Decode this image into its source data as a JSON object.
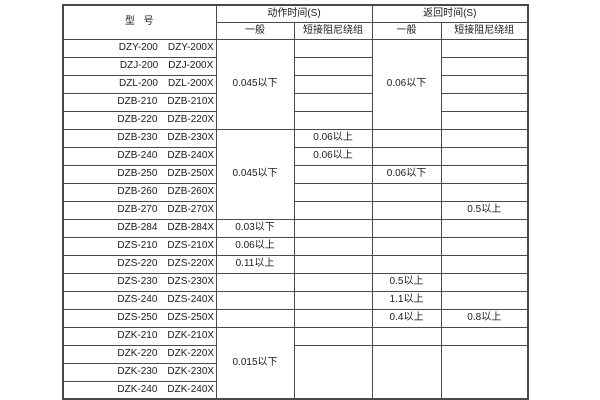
{
  "colors": {
    "background": "#ffffff",
    "border": "#4a4a4a",
    "text": "#1a1a1a"
  },
  "table": {
    "header": {
      "model": "型  号",
      "action_time": "动作时间(S)",
      "return_time": "返回时间(S)",
      "general": "一般",
      "short_damping": "短接阻尼绕组"
    },
    "rows": [
      {
        "m1": "DZY-200",
        "m2": "DZY-200X"
      },
      {
        "m1": "DZJ-200",
        "m2": "DZJ-200X"
      },
      {
        "m1": "DZL-200",
        "m2": "DZL-200X"
      },
      {
        "m1": "DZB-210",
        "m2": "DZB-210X"
      },
      {
        "m1": "DZB-220",
        "m2": "DZB-220X"
      },
      {
        "m1": "DZB-230",
        "m2": "DZB-230X"
      },
      {
        "m1": "DZB-240",
        "m2": "DZB-240X"
      },
      {
        "m1": "DZB-250",
        "m2": "DZB-250X"
      },
      {
        "m1": "DZB-260",
        "m2": "DZB-260X"
      },
      {
        "m1": "DZB-270",
        "m2": "DZB-270X"
      },
      {
        "m1": "DZB-284",
        "m2": "DZB-284X"
      },
      {
        "m1": "DZS-210",
        "m2": "DZS-210X"
      },
      {
        "m1": "DZS-220",
        "m2": "DZS-220X"
      },
      {
        "m1": "DZS-230",
        "m2": "DZS-230X"
      },
      {
        "m1": "DZS-240",
        "m2": "DZS-240X"
      },
      {
        "m1": "DZS-250",
        "m2": "DZS-250X"
      },
      {
        "m1": "DZK-210",
        "m2": "DZK-210X"
      },
      {
        "m1": "DZK-220",
        "m2": "DZK-220X"
      },
      {
        "m1": "DZK-230",
        "m2": "DZK-230X"
      },
      {
        "m1": "DZK-240",
        "m2": "DZK-240X"
      }
    ],
    "columns": {
      "act_gen": [
        {
          "span": 5,
          "text": "0.045以下"
        },
        {
          "span": 5,
          "text": "0.045以下"
        },
        {
          "span": 1,
          "text": "0.03以下"
        },
        {
          "span": 1,
          "text": "0.06以上"
        },
        {
          "span": 1,
          "text": "0.11以上"
        },
        {
          "span": 1,
          "text": ""
        },
        {
          "span": 1,
          "text": ""
        },
        {
          "span": 1,
          "text": ""
        },
        {
          "span": 4,
          "text": "0.015以下"
        }
      ],
      "act_damp": [
        {
          "span": 1,
          "text": ""
        },
        {
          "span": 1,
          "text": ""
        },
        {
          "span": 1,
          "text": ""
        },
        {
          "span": 1,
          "text": ""
        },
        {
          "span": 1,
          "text": ""
        },
        {
          "span": 1,
          "text": "0.06以上"
        },
        {
          "span": 1,
          "text": "0.06以上"
        },
        {
          "span": 1,
          "text": ""
        },
        {
          "span": 1,
          "text": ""
        },
        {
          "span": 1,
          "text": ""
        },
        {
          "span": 1,
          "text": ""
        },
        {
          "span": 1,
          "text": ""
        },
        {
          "span": 1,
          "text": ""
        },
        {
          "span": 1,
          "text": ""
        },
        {
          "span": 1,
          "text": ""
        },
        {
          "span": 1,
          "text": ""
        },
        {
          "span": 1,
          "text": ""
        },
        {
          "span": 3,
          "text": ""
        }
      ],
      "ret_gen": [
        {
          "span": 5,
          "text": "0.06以下"
        },
        {
          "span": 1,
          "text": ""
        },
        {
          "span": 1,
          "text": ""
        },
        {
          "span": 1,
          "text": "0.06以下"
        },
        {
          "span": 1,
          "text": ""
        },
        {
          "span": 1,
          "text": ""
        },
        {
          "span": 1,
          "text": ""
        },
        {
          "span": 1,
          "text": ""
        },
        {
          "span": 1,
          "text": ""
        },
        {
          "span": 1,
          "text": "0.5以上"
        },
        {
          "span": 1,
          "text": "1.1以上"
        },
        {
          "span": 1,
          "text": "0.4以上"
        },
        {
          "span": 1,
          "text": ""
        },
        {
          "span": 3,
          "text": ""
        }
      ],
      "ret_damp": [
        {
          "span": 1,
          "text": ""
        },
        {
          "span": 1,
          "text": ""
        },
        {
          "span": 1,
          "text": ""
        },
        {
          "span": 1,
          "text": ""
        },
        {
          "span": 1,
          "text": ""
        },
        {
          "span": 1,
          "text": ""
        },
        {
          "span": 1,
          "text": ""
        },
        {
          "span": 1,
          "text": ""
        },
        {
          "span": 1,
          "text": ""
        },
        {
          "span": 1,
          "text": "0.5以上"
        },
        {
          "span": 1,
          "text": ""
        },
        {
          "span": 1,
          "text": ""
        },
        {
          "span": 1,
          "text": ""
        },
        {
          "span": 1,
          "text": ""
        },
        {
          "span": 1,
          "text": ""
        },
        {
          "span": 1,
          "text": "0.8以上"
        },
        {
          "span": 1,
          "text": ""
        },
        {
          "span": 3,
          "text": ""
        }
      ]
    }
  }
}
